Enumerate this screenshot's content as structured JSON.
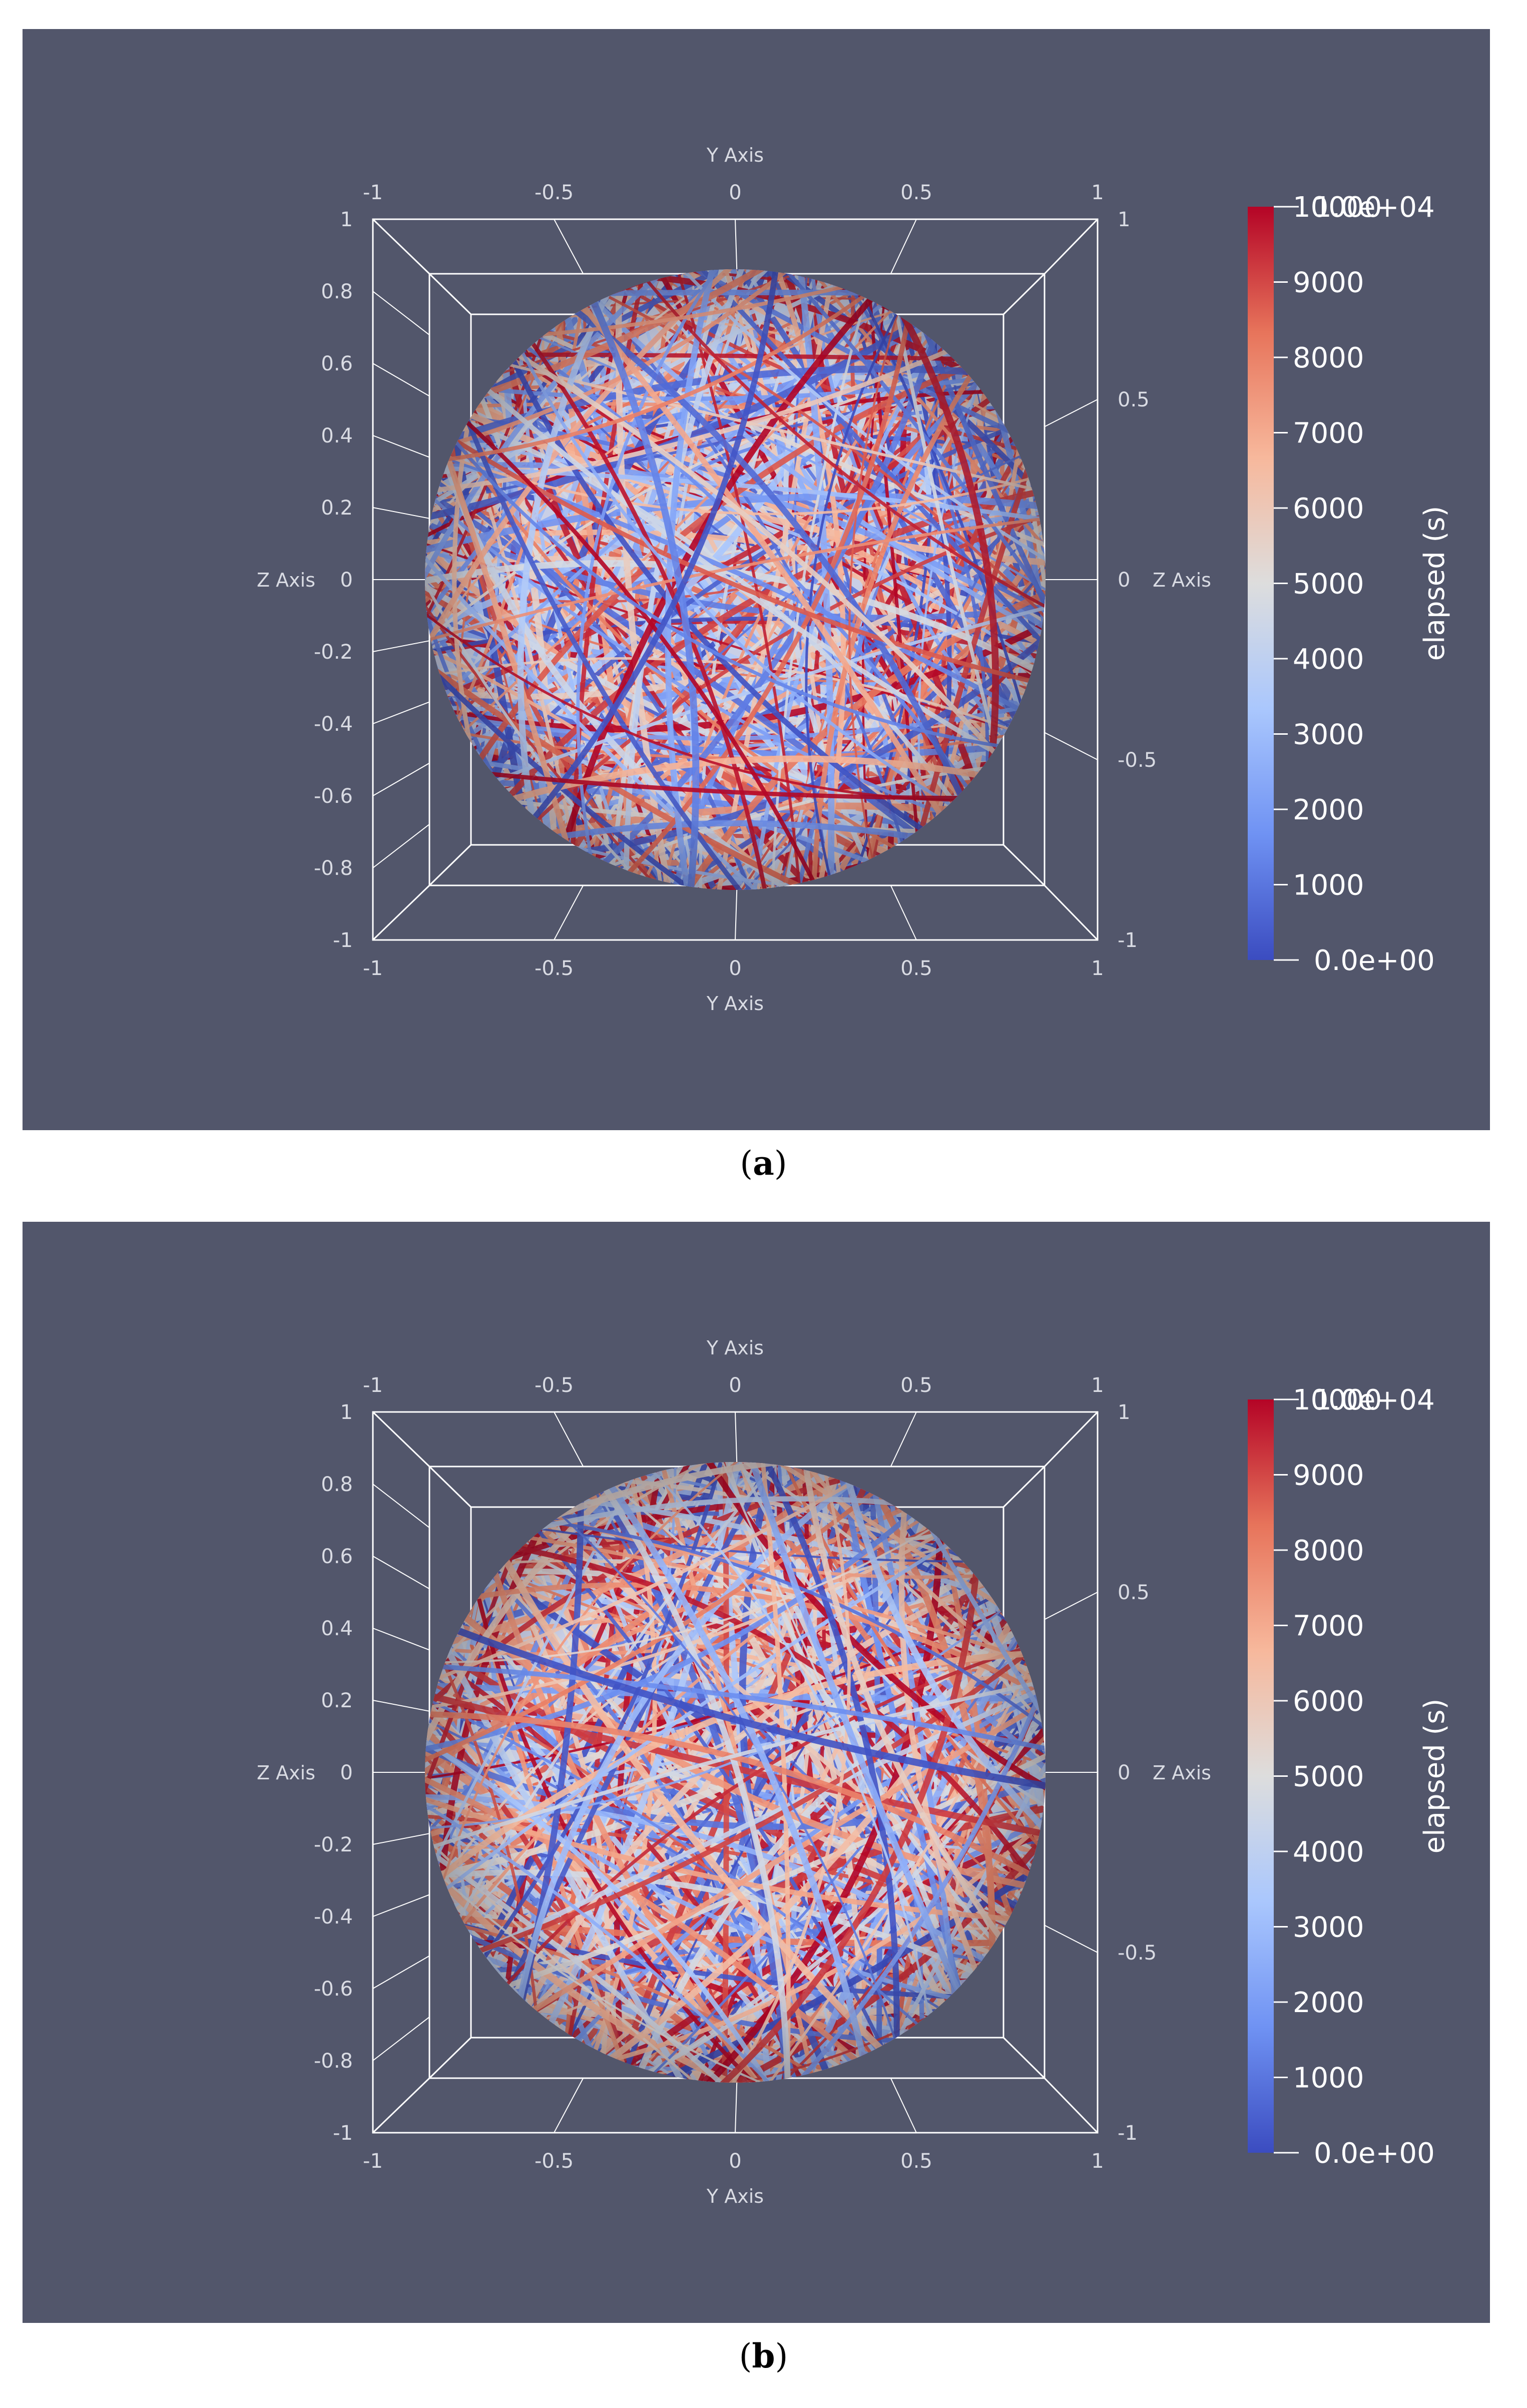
{
  "panels": [
    {
      "id": "a",
      "caption_open": "(",
      "caption_letter": "a",
      "caption_close": ")",
      "seed": 7
    },
    {
      "id": "b",
      "caption_open": "(",
      "caption_letter": "b",
      "caption_close": ")",
      "seed": 31
    }
  ],
  "chart_data": [
    {
      "type": "scatter",
      "title": "",
      "description_kind": "3D trajectories on unit sphere colored by elapsed time",
      "xlabel": "Y Axis",
      "ylabel": "Z Axis",
      "xlim": [
        -1,
        1
      ],
      "ylim": [
        -1,
        1
      ],
      "x_ticks": [
        "-1",
        "-0.5",
        "0",
        "0.5",
        "1"
      ],
      "y_ticks_left": [
        "1",
        "0.8",
        "0.6",
        "0.4",
        "0.2",
        "0",
        "-0.2",
        "-0.4",
        "-0.6",
        "-0.8",
        "-1"
      ],
      "y_ticks_right": [
        "1",
        "0.5",
        "0",
        "-0.5",
        "-1"
      ],
      "colorbar": {
        "title": "elapsed (s)",
        "min": 0,
        "max": 10000,
        "min_label": "0.0e+00",
        "max_label": "1.0e+04",
        "ticks": [
          "10000",
          "9000",
          "8000",
          "7000",
          "6000",
          "5000",
          "4000",
          "3000",
          "2000",
          "1000"
        ],
        "colormap": [
          "#3b4cc0",
          "#6f92f3",
          "#aac7fd",
          "#dddddd",
          "#f7b89c",
          "#e7745b",
          "#b40426"
        ]
      }
    },
    {
      "type": "scatter",
      "title": "",
      "description_kind": "3D trajectories on unit sphere colored by elapsed time",
      "xlabel": "Y Axis",
      "ylabel": "Z Axis",
      "xlim": [
        -1,
        1
      ],
      "ylim": [
        -1,
        1
      ],
      "x_ticks": [
        "-1",
        "-0.5",
        "0",
        "0.5",
        "1"
      ],
      "y_ticks_left": [
        "1",
        "0.8",
        "0.6",
        "0.4",
        "0.2",
        "0",
        "-0.2",
        "-0.4",
        "-0.6",
        "-0.8",
        "-1"
      ],
      "y_ticks_right": [
        "1",
        "0.5",
        "0",
        "-0.5",
        "-1"
      ],
      "colorbar": {
        "title": "elapsed (s)",
        "min": 0,
        "max": 10000,
        "min_label": "0.0e+00",
        "max_label": "1.0e+04",
        "ticks": [
          "10000",
          "9000",
          "8000",
          "7000",
          "6000",
          "5000",
          "4000",
          "3000",
          "2000",
          "1000"
        ],
        "colormap": [
          "#3b4cc0",
          "#6f92f3",
          "#aac7fd",
          "#dddddd",
          "#f7b89c",
          "#e7745b",
          "#b40426"
        ]
      }
    }
  ],
  "colors": {
    "background": "#52566b",
    "grid": "#ffffff",
    "tick_text": "#d9dbe3"
  }
}
